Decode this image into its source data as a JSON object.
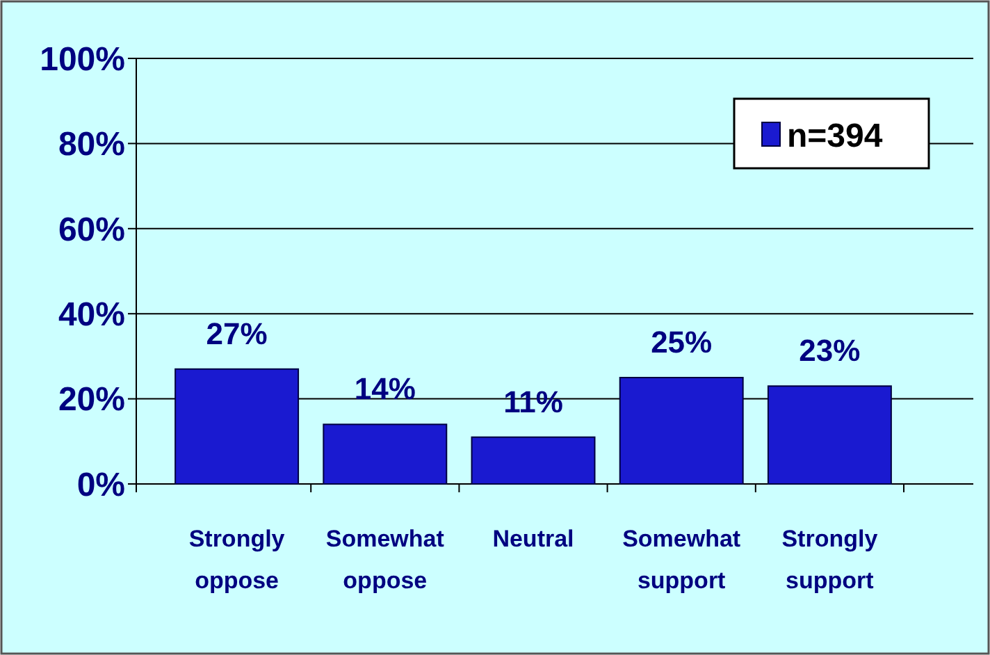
{
  "chart_data": {
    "type": "bar",
    "categories": [
      "Strongly oppose",
      "Somewhat oppose",
      "Neutral",
      "Somewhat support",
      "Strongly support"
    ],
    "series": [
      {
        "name": "n=394",
        "color": "#1a1ad0",
        "values": [
          27,
          14,
          11,
          25,
          23
        ]
      }
    ],
    "ylim": [
      0,
      100
    ],
    "yticks": [
      {
        "value": 0,
        "label": "0%"
      },
      {
        "value": 20,
        "label": "20%"
      },
      {
        "value": 40,
        "label": "40%"
      },
      {
        "value": 60,
        "label": "60%"
      },
      {
        "value": 80,
        "label": "80%"
      },
      {
        "value": 100,
        "label": "100%"
      }
    ],
    "value_labels": [
      "27%",
      "14%",
      "11%",
      "25%",
      "23%"
    ],
    "grid": "y",
    "legend": "top right"
  }
}
